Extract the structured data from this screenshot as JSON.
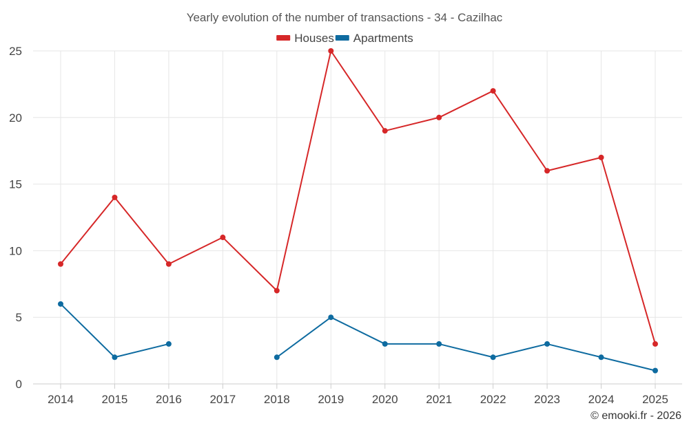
{
  "chart_data": {
    "type": "line",
    "title": "Yearly evolution of the number of transactions - 34 - Cazilhac",
    "categories": [
      "2014",
      "2015",
      "2016",
      "2017",
      "2018",
      "2019",
      "2020",
      "2021",
      "2022",
      "2023",
      "2024",
      "2025"
    ],
    "series": [
      {
        "name": "Houses",
        "color": "#d62728",
        "values": [
          9,
          14,
          9,
          11,
          7,
          25,
          19,
          20,
          22,
          16,
          17,
          3
        ]
      },
      {
        "name": "Apartments",
        "color": "#0e6ba0",
        "values": [
          6,
          2,
          3,
          null,
          2,
          5,
          3,
          3,
          2,
          3,
          2,
          1
        ]
      }
    ],
    "xlabel": "",
    "ylabel": "",
    "ylim": [
      0,
      25
    ],
    "yticks": [
      0,
      5,
      10,
      15,
      20,
      25
    ],
    "grid": true,
    "legend_position": "top-center"
  },
  "credit": "© emooki.fr - 2026"
}
